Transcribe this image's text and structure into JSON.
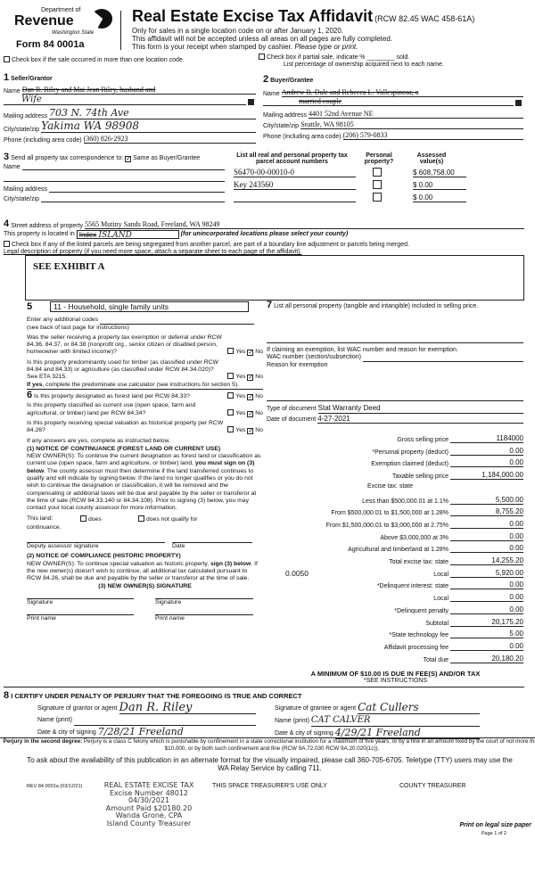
{
  "header": {
    "dept_of": "Department of",
    "revenue": "Revenue",
    "state": "Washington State",
    "form": "Form 84 0001a",
    "title": "Real Estate Excise Tax Affidavit",
    "rcw": "(RCW 82.45 WAC 458-61A)",
    "line1": "Only for sales in a single location code on or after January 1, 2020.",
    "line2": "This affidavit will not be accepted unless all areas on all pages are fully completed.",
    "line3": "This form is your receipt when stamped by cashier.",
    "line3_italic": "Please type or print.",
    "brand_color": "#111111"
  },
  "checks": {
    "multi_location": "Check box if the sale occurred in more than one location code.",
    "partial_sale": "Check box if partial sale, indicate % ________ sold.",
    "ownership_note": "List percentage of ownership acquired next to each name."
  },
  "seller": {
    "num": "1",
    "title": "Seller/Grantor",
    "name_label": "Name",
    "name": "Dan R. Riley and Mai Jean Riley, husband and",
    "name2": "Wife",
    "mail_label": "Mailing address",
    "mail": "703 N. 74th Ave",
    "city_label": "City/state/zip",
    "city": "Yakima WA 98908",
    "phone_label": "Phone (including area code)",
    "phone": "(360) 826-2923"
  },
  "buyer": {
    "num": "2",
    "title": "Buyer/Grantee",
    "name_label": "Name",
    "name": "Andrew R. Dale and Rebecca L. Vallespinosa, a",
    "name2": "married couple",
    "mail_label": "Mailing address",
    "mail": "4401 52nd Avenue NE",
    "city_label": "City/state/zip",
    "city": "Seattle, WA 98105",
    "phone_label": "Phone (including area code)",
    "phone": "(206) 579-0833"
  },
  "correspondence": {
    "num": "3",
    "title": "Send all property tax correspondence to:",
    "same": "Same as Buyer/Grantee",
    "name_label": "Name",
    "mail_label": "Mailing address",
    "city_label": "City/state/zip"
  },
  "parcels": {
    "h1": "List all real and personal property tax parcel account numbers",
    "h2": "Personal property?",
    "h3": "Assessed value(s)",
    "rows": [
      {
        "num": "S6470-00-00010-0",
        "val": "$ 608,758.00"
      },
      {
        "num": "Key 243560",
        "val": "$ 0.00"
      },
      {
        "num": "",
        "val": "$ 0.00"
      }
    ]
  },
  "property": {
    "num": "4",
    "street_label": "Street address of property",
    "street": "5565 Mutiny Sands Road, Freeland, WA 98249",
    "located_label": "This property is located in",
    "located": "Index",
    "located_hand": "ISLAND",
    "located_note": "(for unincorporated locations please select your county)",
    "segregated": "Check box if any of the listed parcels are being segregated from another parcel, are part of a boundary line adjustment or parcels being merged.",
    "legal_label": "Legal description of property (if you need more space, attach a separate sheet to each page of the affidavit).",
    "legal": "SEE EXHIBIT A"
  },
  "s5": {
    "num": "5",
    "code": "11 - Household, single family units",
    "additional": "Enter any additional codes",
    "see_back": "(see back of last page for instructions)",
    "q1": "Was the seller receiving a property tax exemption or deferral under RCW 84.36, 84.37, or 84.38 (nonprofit org., senior citizen or disabled person, homeowner with limited income)?",
    "q2": "Is this property predominantly used for timber (as classified under RCW 84.84 and 84.33) or agriculture (as classified under RCW 84.34.020)? See ETA 3215.",
    "q2_if": "If yes",
    "q2_rest": ", complete the predominate use calculator (see instructions for section 5).",
    "yes": "Yes",
    "no": "No"
  },
  "s6": {
    "num": "6",
    "q1": "Is this property designated as forest land per RCW 84.33?",
    "q2": "Is this property classified as current use (open space, farm and agricultural, or timber) land per RCW 84.34?",
    "q3": "Is this property receiving special valuation as historical property per RCW 84.26?",
    "if_yes": "If any answers are yes, complete as instructed below.",
    "n1_title": "(1) NOTICE OF CONTINUANCE (FOREST LAND OR CURRENT USE)",
    "n1_a": "NEW OWNER(S): To continue the current designation as forest land or classification as current use (open space, farm and agriculture, or timber) land,",
    "n1_b": "you must sign on (3) below",
    "n1_c": ". The county assessor must then determine if the land transferred continues to qualify and will indicate by signing below. If the land no longer qualifies or you do not wish to continue the designation or classification, it will be removed and the compensating or additional taxes will be due and payable by the seller or transferor at the time of sale (RCW 84.33.140 or 84.34.108). Prior to signing (3) below, you may contact your local county assessor for more information.",
    "this_land": "This land:",
    "does": "does",
    "does_not": "does not qualify for",
    "continuance": "continuance.",
    "deputy": "Deputy assessor signature",
    "date": "Date",
    "n2_title": "(2) NOTICE OF COMPLIANCE (HISTORIC PROPERTY)",
    "n2_a": "NEW OWNER(S): To continue special valuation as historic property,",
    "n2_b": "sign (3) below",
    "n2_c": ". If the new owner(s) doesn't wish to continue, all additional tax calculated pursuant to RCW 84.26, shall be due and payable by the seller or transferor at the time of sale.",
    "n3_title": "(3) NEW OWNER(S) SIGNATURE",
    "signature": "Signature",
    "print_name": "Print name"
  },
  "s7": {
    "num": "7",
    "title": "List all personal property (tangible and intangible) included in selling price.",
    "exemption": "If claiming an exemption, list WAC number and reason for exemption.",
    "wac": "WAC number (section/subsection)",
    "reason": "Reason for exemption",
    "doc_type_label": "Type of document",
    "doc_type": "Stat Warranty Deed",
    "doc_date_label": "Date of document",
    "doc_date": "4-27-2021"
  },
  "finance": {
    "rows": [
      {
        "label": "Gross selling price",
        "value": "1184000"
      },
      {
        "label": "*Personal property (deduct)",
        "value": "0.00"
      },
      {
        "label": "Exemption claimed (deduct)",
        "value": "0.00"
      },
      {
        "label": "Taxable selling price",
        "value": "1,184,000.00"
      },
      {
        "label": "Excise tax: state",
        "value": ""
      },
      {
        "label": "Less than $500,000.01 at 1.1%",
        "value": "5,500.00"
      },
      {
        "label": "From $500,000.01 to $1,500,000 at 1.28%",
        "value": "8,755.20"
      },
      {
        "label": "From $1,500,000.01 to $3,000,000 at 2.75%",
        "value": "0.00"
      },
      {
        "label": "Above $3,000,000 at 3%",
        "value": "0.00"
      },
      {
        "label": "Agricultural and timberland at 1.28%",
        "value": "0.00"
      },
      {
        "label": "Total excise tax: state",
        "value": "14,255.20"
      },
      {
        "label": "Local",
        "value": "5,920.00",
        "rate": "0.0050"
      },
      {
        "label": "*Delinquent interest: state",
        "value": "0.00"
      },
      {
        "label": "Local",
        "value": "0.00"
      },
      {
        "label": "*Delinquent penalty",
        "value": "0.00"
      },
      {
        "label": "Subtotal",
        "value": "20,175.20"
      },
      {
        "label": "*State technology fee",
        "value": "5.00"
      },
      {
        "label": "Affidavit processing fee",
        "value": "0.00"
      },
      {
        "label": "Total due",
        "value": "20,180.20"
      }
    ],
    "minimum": "A MINIMUM OF $10.00 IS DUE IN FEE(S) AND/OR TAX",
    "see": "*SEE INSTRUCTIONS"
  },
  "s8": {
    "num": "8",
    "title": "I CERTIFY UNDER PENALTY OF PERJURY THAT THE FOREGOING IS TRUE AND CORRECT",
    "sig_grantor": "Signature of grantor or agent",
    "sig_grantor_val": "Dan R. Riley",
    "name_print": "Name (print)",
    "grantor_name": "",
    "date_city": "Date & city of signing",
    "grantor_date": "7/28/21 Freeland",
    "sig_grantee": "Signature of grantee or agent",
    "sig_grantee_val": "Cat Cullers",
    "grantee_name": "CAT CALVER",
    "grantee_date": "4/29/21 Freeland"
  },
  "footer": {
    "perjury_b": "Perjury in the second degree:",
    "perjury": " Perjury is a class C felony which is punishable by confinement in a state correctional institution for a maximum of five years, or by a fine in an amount fixed by the court of not more than $10,000, or by both such confinement and fine (RCW 9A.72.030 RCW 9A.20.020(1c)).",
    "ask": "To ask about the availability of this publication in an alternate format for the visually impaired, please call 360-705-6705. Teletype (TTY) users may use the WA Relay Service by calling 711.",
    "rev": "REV 84 0001a (03/12/21)",
    "stamp": [
      "REAL ESTATE EXCISE TAX",
      "Excise Number 48012",
      "04/30/2021",
      "Amount Paid $20180.20",
      "Wanda Grone, CPA",
      "Island County Treasurer"
    ],
    "treasurer_space": "THIS SPACE TREASURER'S USE ONLY",
    "county_treasurer": "COUNTY TREASURER",
    "legal_paper": "Print on legal size paper",
    "page": "Page 1 of 2"
  }
}
